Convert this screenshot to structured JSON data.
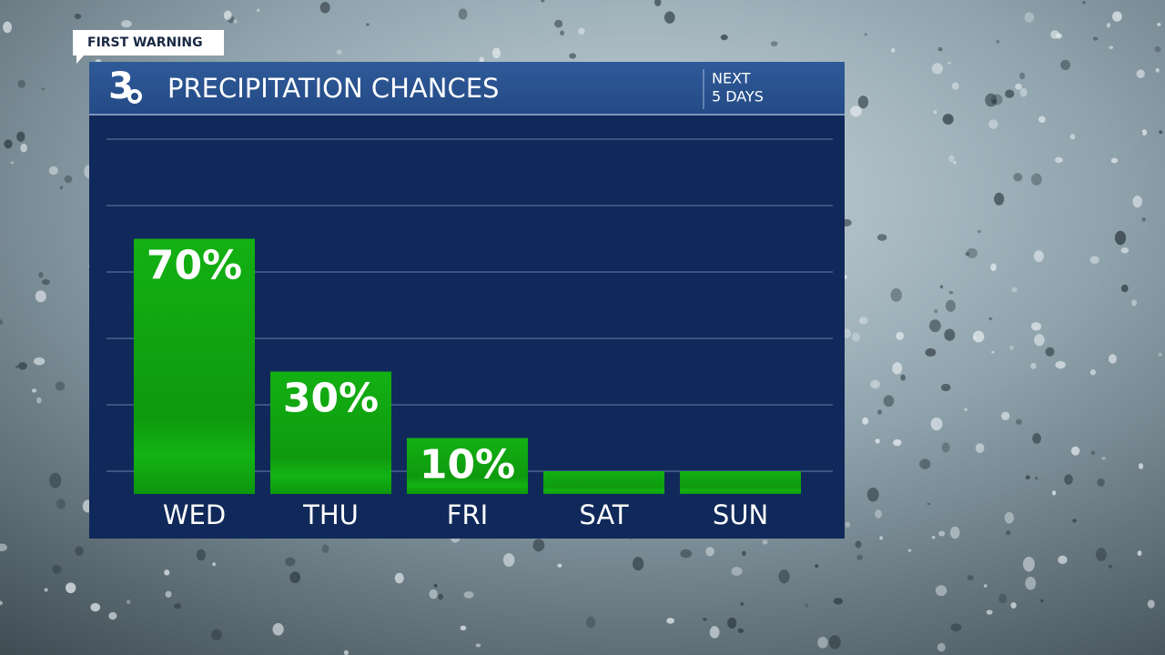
{
  "chart_data": {
    "type": "bar",
    "badge": "FIRST WARNING",
    "logo": "3",
    "title": "PRECIPITATION CHANCES",
    "subtitle": [
      "NEXT",
      "5 DAYS"
    ],
    "categories": [
      "WED",
      "THU",
      "FRI",
      "SAT",
      "SUN"
    ],
    "values": [
      70,
      30,
      10,
      0,
      0
    ],
    "value_labels": [
      "70%",
      "30%",
      "10%",
      null,
      null
    ],
    "color": "#11a611",
    "ylim": [
      0,
      100
    ],
    "yticks": [
      0,
      20,
      40,
      60,
      80,
      100
    ],
    "grid": true
  }
}
